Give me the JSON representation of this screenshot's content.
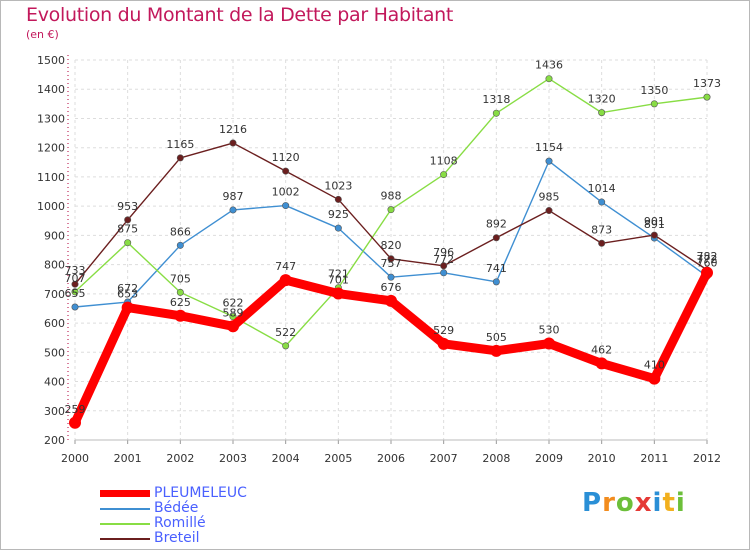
{
  "chart_data": {
    "type": "line",
    "title": "Evolution du Montant de la Dette par Habitant",
    "subtitle": "(en €)",
    "categories": [
      "2000",
      "2001",
      "2002",
      "2003",
      "2004",
      "2005",
      "2006",
      "2007",
      "2008",
      "2009",
      "2010",
      "2011",
      "2012"
    ],
    "ylim": [
      200,
      1500
    ],
    "yticks": [
      200,
      300,
      400,
      500,
      600,
      700,
      800,
      900,
      1000,
      1100,
      1200,
      1300,
      1400,
      1500
    ],
    "grid": true,
    "legend_position": "bottom-left",
    "series": [
      {
        "name": "PLEUMELEUC",
        "color": "#ff0000",
        "values": [
          259,
          653,
          625,
          589,
          747,
          701,
          676,
          529,
          505,
          530,
          462,
          410,
          772
        ]
      },
      {
        "name": "Bédée",
        "color": "#3f8fd2",
        "values": [
          655,
          672,
          866,
          987,
          1002,
          925,
          757,
          772,
          741,
          1154,
          1014,
          891,
          760
        ]
      },
      {
        "name": "Romillé",
        "color": "#88dd44",
        "values": [
          707,
          875,
          705,
          622,
          522,
          721,
          988,
          1108,
          1318,
          1436,
          1320,
          1350,
          1373
        ]
      },
      {
        "name": "Breteil",
        "color": "#6b1f1f",
        "values": [
          733,
          953,
          1165,
          1216,
          1120,
          1023,
          820,
          796,
          892,
          985,
          873,
          901,
          782
        ]
      }
    ]
  },
  "logo": {
    "letters": [
      "P",
      "r",
      "o",
      "x",
      "i",
      "t",
      "i"
    ],
    "colors": [
      "#2a8fd6",
      "#f28c1e",
      "#6cbf3a",
      "#e53935",
      "#2a8fd6",
      "#f2b01e",
      "#6cbf3a"
    ]
  }
}
